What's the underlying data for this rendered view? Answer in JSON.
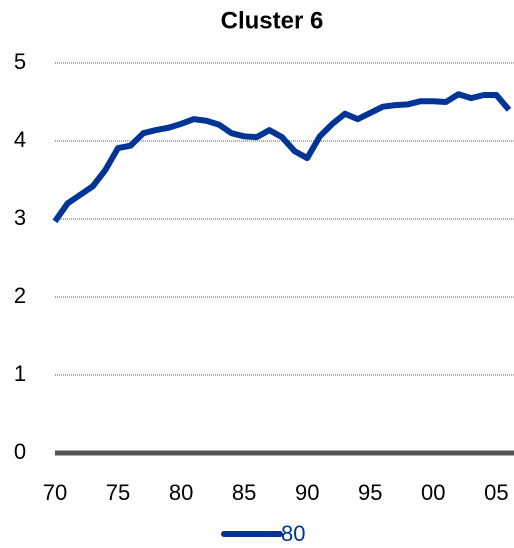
{
  "chart_data": {
    "type": "line",
    "title": "Cluster 6",
    "x": [
      1970,
      1971,
      1972,
      1973,
      1974,
      1975,
      1976,
      1977,
      1978,
      1979,
      1980,
      1981,
      1982,
      1983,
      1984,
      1985,
      1986,
      1987,
      1988,
      1989,
      1990,
      1991,
      1992,
      1993,
      1994,
      1995,
      1996,
      1997,
      1998,
      1999,
      2000,
      2001,
      2002,
      2003,
      2004,
      2005,
      2006
    ],
    "series": [
      {
        "name": "80",
        "color": "#003595",
        "values": [
          2.97,
          3.2,
          3.31,
          3.42,
          3.63,
          3.91,
          3.94,
          4.1,
          4.14,
          4.17,
          4.22,
          4.28,
          4.26,
          4.21,
          4.1,
          4.06,
          4.05,
          4.14,
          4.05,
          3.87,
          3.78,
          4.06,
          4.22,
          4.35,
          4.28,
          4.36,
          4.44,
          4.46,
          4.47,
          4.51,
          4.51,
          4.5,
          4.6,
          4.55,
          4.59,
          4.59,
          4.4
        ]
      }
    ],
    "xlim": [
      1970,
      2006.4
    ],
    "xticks": [
      {
        "value": 1970,
        "label": "70"
      },
      {
        "value": 1975,
        "label": "75"
      },
      {
        "value": 1980,
        "label": "80"
      },
      {
        "value": 1985,
        "label": "85"
      },
      {
        "value": 1990,
        "label": "90"
      },
      {
        "value": 1995,
        "label": "95"
      },
      {
        "value": 2000,
        "label": "00"
      },
      {
        "value": 2005,
        "label": "05"
      }
    ],
    "ylim": [
      0,
      5
    ],
    "yticks": [
      0,
      1,
      2,
      3,
      4,
      5
    ],
    "grid": true,
    "legend": "bottom"
  }
}
